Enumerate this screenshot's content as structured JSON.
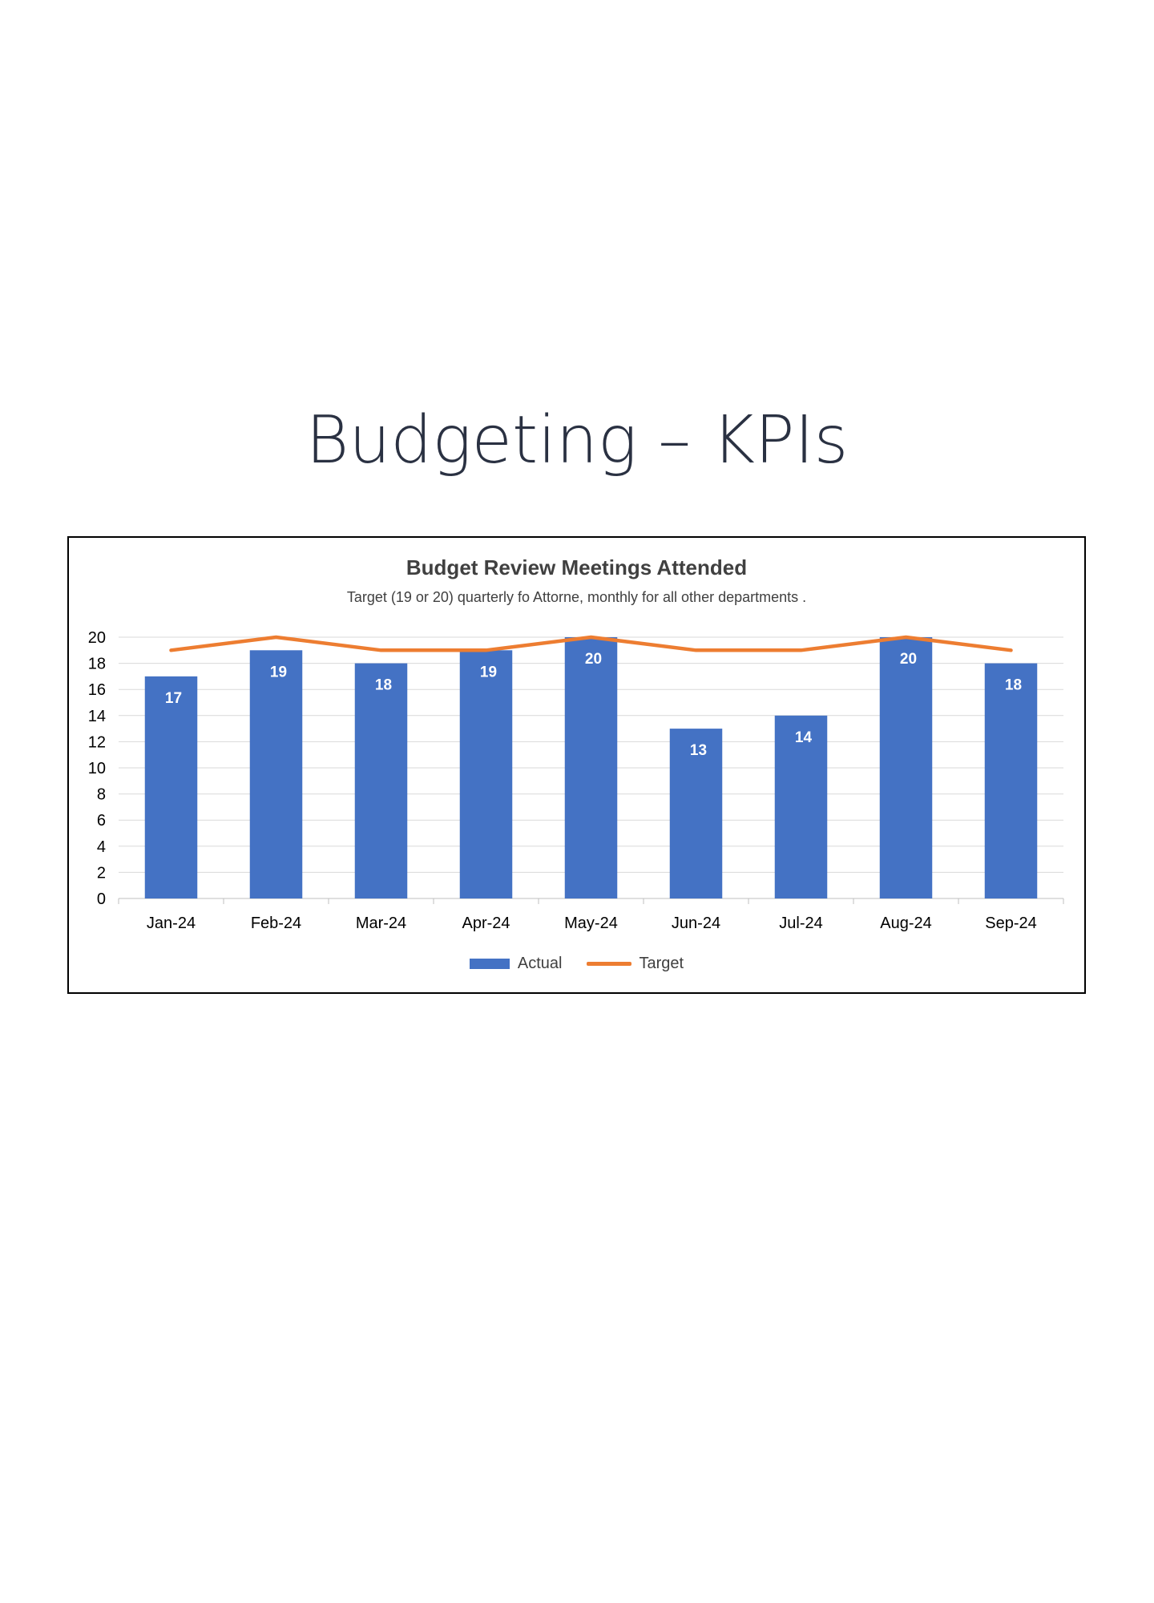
{
  "page": {
    "title": "Budgeting – KPIs"
  },
  "chart_data": {
    "type": "bar",
    "title": "Budget Review Meetings Attended",
    "subtitle": "Target (19 or 20) quarterly fo Attorne, monthly for all other departments .",
    "categories": [
      "Jan-24",
      "Feb-24",
      "Mar-24",
      "Apr-24",
      "May-24",
      "Jun-24",
      "Jul-24",
      "Aug-24",
      "Sep-24"
    ],
    "series": [
      {
        "name": "Actual",
        "type": "bar",
        "color": "#4472C4",
        "values": [
          17,
          19,
          18,
          19,
          20,
          13,
          14,
          20,
          18
        ]
      },
      {
        "name": "Target",
        "type": "line",
        "color": "#ED7D31",
        "values": [
          19,
          20,
          19,
          19,
          20,
          19,
          19,
          20,
          19
        ]
      }
    ],
    "ylim": [
      0,
      20
    ],
    "yticks": [
      0,
      2,
      4,
      6,
      8,
      10,
      12,
      14,
      16,
      18,
      20
    ],
    "grid": true,
    "legend": "bottom",
    "data_labels": true
  }
}
